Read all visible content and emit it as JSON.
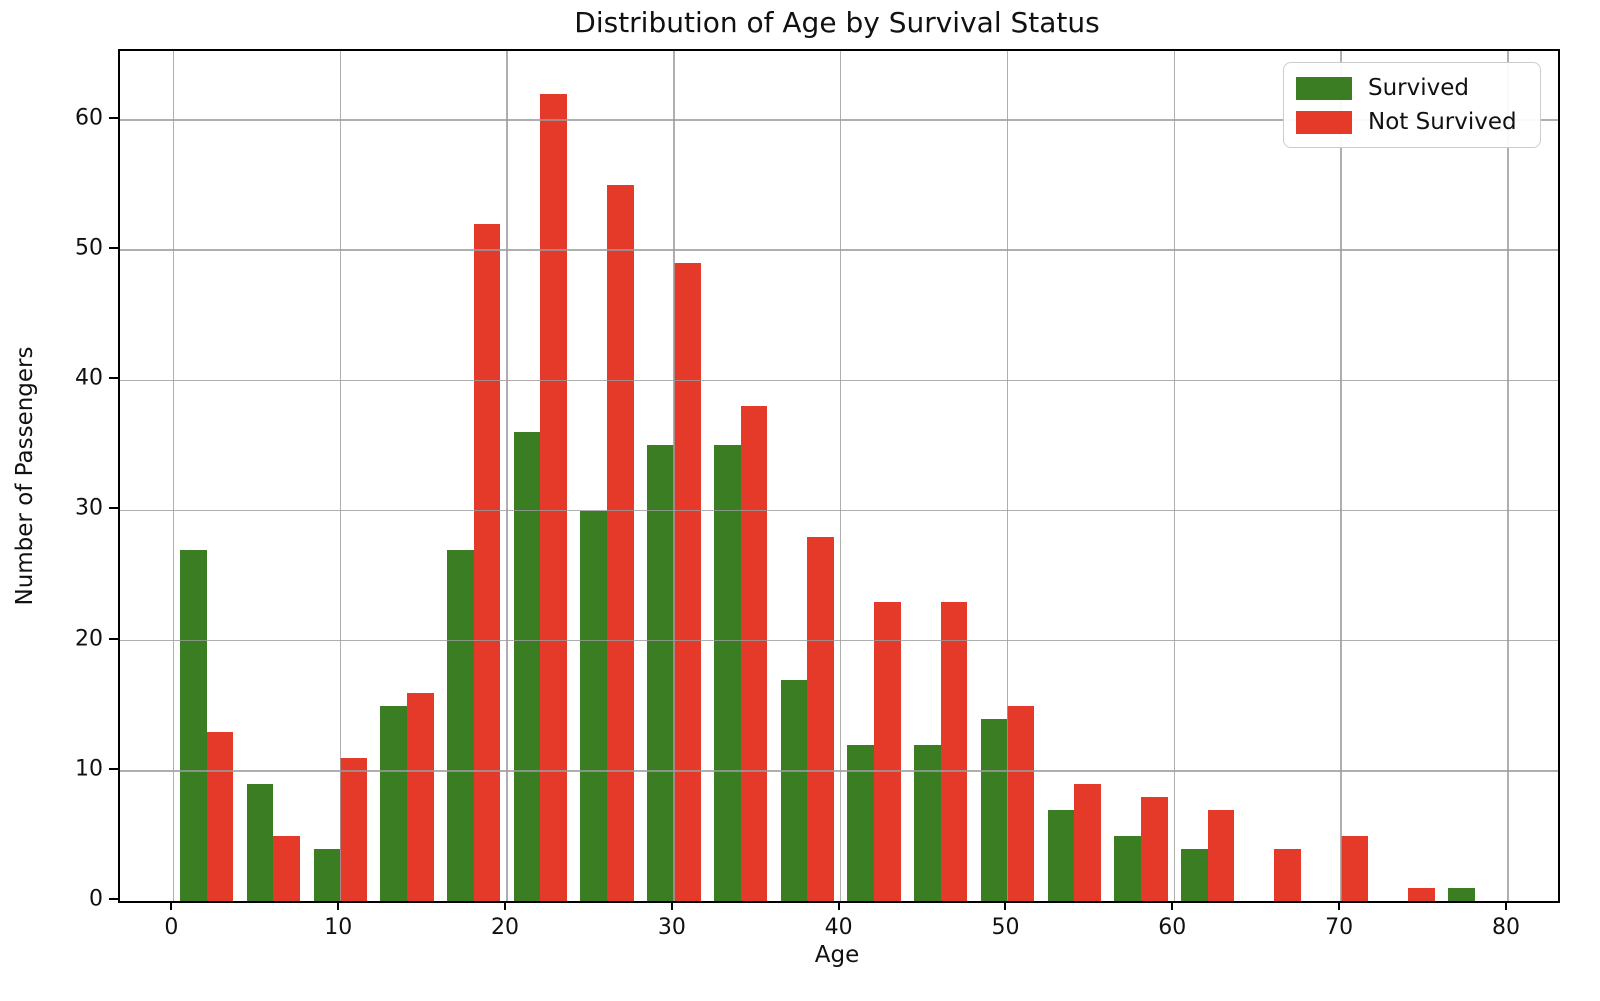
{
  "figure": {
    "title": "Distribution of Age by Survival Status"
  },
  "chart_data": {
    "type": "bar",
    "subtype": "grouped-histogram",
    "title": "Distribution of Age by Survival Status",
    "xlabel": "Age",
    "ylabel": "Number of Passengers",
    "bin_width": 4,
    "bin_starts": [
      0,
      4,
      8,
      12,
      16,
      20,
      24,
      28,
      32,
      36,
      40,
      44,
      48,
      52,
      56,
      60,
      64,
      68,
      72,
      76
    ],
    "series": [
      {
        "name": "Survived",
        "color": "#3a7d23",
        "values": [
          27,
          9,
          4,
          15,
          27,
          36,
          30,
          35,
          35,
          17,
          12,
          12,
          14,
          7,
          5,
          4,
          0,
          0,
          0,
          1
        ]
      },
      {
        "name": "Not Survived",
        "color": "#e5392a",
        "values": [
          13,
          5,
          11,
          16,
          52,
          62,
          55,
          49,
          38,
          28,
          23,
          23,
          15,
          9,
          8,
          7,
          4,
          5,
          1,
          0
        ]
      }
    ],
    "x_ticks": [
      0,
      10,
      20,
      30,
      40,
      50,
      60,
      70,
      80
    ],
    "y_ticks": [
      0,
      10,
      20,
      30,
      40,
      50,
      60
    ],
    "xlim": [
      -3.2,
      83.0
    ],
    "ylim": [
      0,
      65.3
    ],
    "grid": true,
    "grid_color": "#b0b0b0",
    "legend_position": "upper right",
    "legend_border_color": "#cccccc"
  }
}
